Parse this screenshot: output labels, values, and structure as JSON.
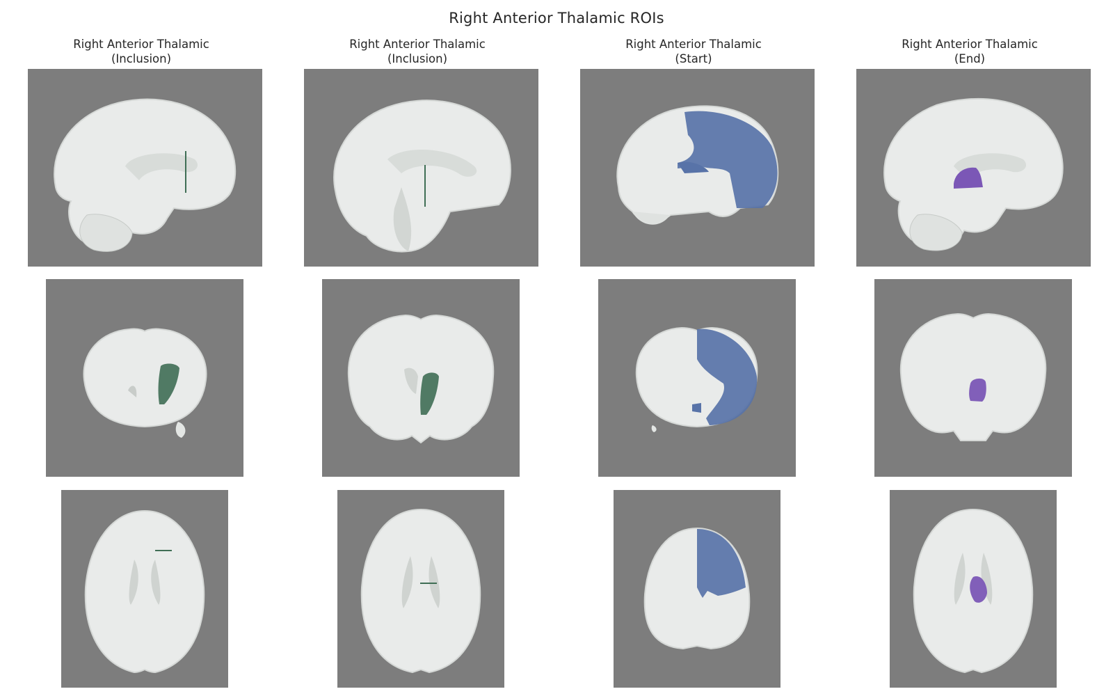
{
  "figure": {
    "title": "Right Anterior Thalamic ROIs"
  },
  "columns": [
    {
      "line1": "Right Anterior Thalamic",
      "line2": "(Inclusion)",
      "roi_color": "#3f6e55"
    },
    {
      "line1": "Right Anterior Thalamic",
      "line2": "(Inclusion)",
      "roi_color": "#3f6e55"
    },
    {
      "line1": "Right Anterior Thalamic",
      "line2": "(Start)",
      "roi_color": "#5873a8"
    },
    {
      "line1": "Right Anterior Thalamic",
      "line2": "(End)",
      "roi_color": "#7b57b6"
    }
  ],
  "views": [
    "sagittal",
    "coronal",
    "axial"
  ],
  "colors": {
    "background_panel": "#7d7d7d",
    "brain_tissue": "#e9ebea",
    "inclusion_roi": "#3f6e55",
    "start_roi": "#5873a8",
    "end_roi": "#7b57b6"
  }
}
